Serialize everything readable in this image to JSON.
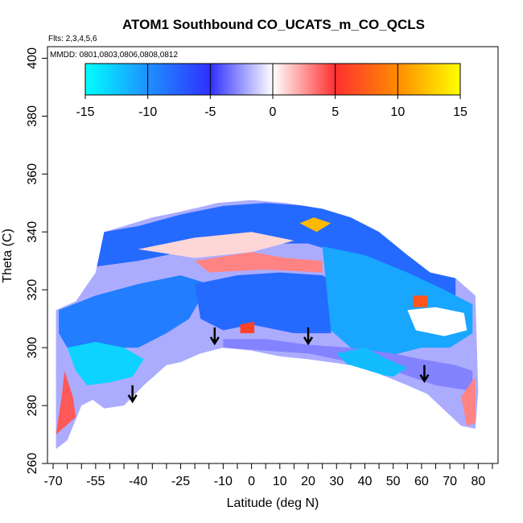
{
  "chart_data": {
    "type": "heatmap",
    "title": "ATOM1 Southbound CO_UCATS_m_CO_QCLS",
    "flights_note": "Flts: 2,3,4,5,6",
    "date_note": "MMDD: 0801,0803,0806,0808,0812",
    "xlabel": "Latitude (deg N)",
    "ylabel": "Theta (C)",
    "xlim": [
      -72,
      87
    ],
    "ylim": [
      260,
      404
    ],
    "x_ticks": [
      -70,
      -55,
      -40,
      -25,
      -10,
      0,
      10,
      20,
      30,
      40,
      50,
      60,
      70,
      80
    ],
    "x_minor_step": 5,
    "y_ticks": [
      260,
      280,
      300,
      320,
      340,
      360,
      380,
      400
    ],
    "colorbar": {
      "ticks": [
        -15,
        -10,
        -5,
        0,
        5,
        10,
        15
      ],
      "range": [
        -15,
        15
      ],
      "colors": [
        "#00ffff",
        "#1e90ff",
        "#3030ff",
        "#ffffff",
        "#ff3030",
        "#ff8c00",
        "#ffff00"
      ]
    },
    "arrows": [
      {
        "x": -42,
        "theta": 282
      },
      {
        "x": -13,
        "theta": 302
      },
      {
        "x": 20,
        "theta": 302
      },
      {
        "x": 61,
        "theta": 289
      }
    ],
    "regions": [
      {
        "name": "upper-band",
        "value": -8,
        "poly": [
          [
            -52,
            340
          ],
          [
            -40,
            342
          ],
          [
            -25,
            346
          ],
          [
            -10,
            349
          ],
          [
            5,
            350
          ],
          [
            20,
            349
          ],
          [
            35,
            346
          ],
          [
            50,
            340
          ],
          [
            60,
            332
          ],
          [
            72,
            326
          ],
          [
            72,
            318
          ],
          [
            55,
            322
          ],
          [
            40,
            330
          ],
          [
            20,
            336
          ],
          [
            0,
            336
          ],
          [
            -20,
            334
          ],
          [
            -40,
            330
          ],
          [
            -55,
            328
          ]
        ]
      },
      {
        "name": "white-streak-upper",
        "value": 1,
        "poly": [
          [
            -40,
            334
          ],
          [
            -20,
            338
          ],
          [
            0,
            340
          ],
          [
            15,
            337
          ],
          [
            0,
            333
          ],
          [
            -20,
            331
          ]
        ]
      },
      {
        "name": "red-streak",
        "value": 3,
        "poly": [
          [
            -20,
            330
          ],
          [
            0,
            333
          ],
          [
            12,
            331
          ],
          [
            25,
            330
          ],
          [
            25,
            326
          ],
          [
            5,
            327
          ],
          [
            -15,
            326
          ]
        ]
      },
      {
        "name": "mid-left-blue",
        "value": -9,
        "poly": [
          [
            -68,
            313
          ],
          [
            -55,
            318
          ],
          [
            -40,
            322
          ],
          [
            -25,
            325
          ],
          [
            -15,
            322
          ],
          [
            -22,
            310
          ],
          [
            -30,
            305
          ],
          [
            -40,
            300
          ],
          [
            -55,
            300
          ],
          [
            -65,
            300
          ],
          [
            -68,
            305
          ]
        ]
      },
      {
        "name": "mid-center-blue",
        "value": -8,
        "poly": [
          [
            -20,
            322
          ],
          [
            -5,
            325
          ],
          [
            10,
            326
          ],
          [
            25,
            325
          ],
          [
            30,
            322
          ],
          [
            28,
            305
          ],
          [
            15,
            305
          ],
          [
            0,
            308
          ],
          [
            -10,
            306
          ],
          [
            -18,
            310
          ]
        ]
      },
      {
        "name": "right-block-blue",
        "value": -11,
        "poly": [
          [
            25,
            335
          ],
          [
            40,
            332
          ],
          [
            55,
            326
          ],
          [
            68,
            320
          ],
          [
            78,
            315
          ],
          [
            78,
            305
          ],
          [
            70,
            300
          ],
          [
            60,
            300
          ],
          [
            48,
            297
          ],
          [
            35,
            300
          ],
          [
            28,
            306
          ]
        ]
      },
      {
        "name": "light-band",
        "value": -3,
        "poly": [
          [
            -10,
            303
          ],
          [
            5,
            303
          ],
          [
            20,
            301
          ],
          [
            35,
            300
          ],
          [
            50,
            298
          ],
          [
            60,
            296
          ],
          [
            72,
            294
          ],
          [
            78,
            292
          ],
          [
            78,
            285
          ],
          [
            65,
            287
          ],
          [
            50,
            292
          ],
          [
            35,
            295
          ],
          [
            20,
            298
          ],
          [
            5,
            299
          ],
          [
            -10,
            300
          ]
        ]
      },
      {
        "name": "left-lower-cyan",
        "value": -13,
        "poly": [
          [
            -65,
            300
          ],
          [
            -55,
            302
          ],
          [
            -45,
            300
          ],
          [
            -38,
            296
          ],
          [
            -42,
            290
          ],
          [
            -50,
            288
          ],
          [
            -58,
            287
          ],
          [
            -62,
            292
          ]
        ]
      },
      {
        "name": "right-lower-cyan",
        "value": -12,
        "poly": [
          [
            30,
            298
          ],
          [
            40,
            300
          ],
          [
            48,
            296
          ],
          [
            55,
            293
          ],
          [
            50,
            290
          ],
          [
            42,
            291
          ],
          [
            35,
            293
          ]
        ]
      },
      {
        "name": "right-white-patch",
        "value": 0,
        "poly": [
          [
            55,
            313
          ],
          [
            65,
            314
          ],
          [
            75,
            312
          ],
          [
            76,
            306
          ],
          [
            68,
            304
          ],
          [
            58,
            306
          ]
        ]
      },
      {
        "name": "left-red-edge",
        "value": 4,
        "poly": [
          [
            -69,
            270
          ],
          [
            -67,
            283
          ],
          [
            -66,
            292
          ],
          [
            -63,
            283
          ],
          [
            -62,
            276
          ]
        ]
      },
      {
        "name": "right-red-edge",
        "value": 3,
        "poly": [
          [
            74,
            283
          ],
          [
            79,
            290
          ],
          [
            79,
            274
          ],
          [
            76,
            273
          ]
        ]
      },
      {
        "name": "orange-hotspot",
        "value": 12,
        "poly": [
          [
            17,
            343
          ],
          [
            22,
            345
          ],
          [
            28,
            343
          ],
          [
            23,
            340
          ]
        ]
      },
      {
        "name": "small-red-spot",
        "value": 6,
        "poly": [
          [
            -4,
            308
          ],
          [
            1,
            309
          ],
          [
            1,
            305
          ],
          [
            -4,
            305
          ]
        ]
      },
      {
        "name": "right-red-dots",
        "value": 7,
        "poly": [
          [
            57,
            318
          ],
          [
            62,
            318
          ],
          [
            62,
            314
          ],
          [
            57,
            314
          ]
        ]
      }
    ]
  }
}
